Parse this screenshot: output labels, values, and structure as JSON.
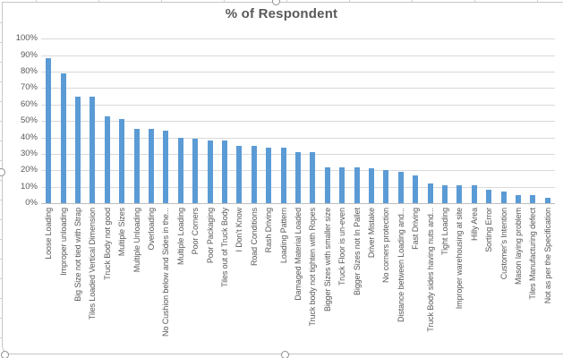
{
  "chart": {
    "title": "% of Respondent",
    "colors": {
      "bar": "#5b9bd5",
      "text": "#595959",
      "gridline": "#d9d9d9",
      "axis_line": "#bfbfbf",
      "frame": "#c6c6c6"
    },
    "y_axis_labels": [
      "0%",
      "10%",
      "20%",
      "30%",
      "40%",
      "50%",
      "60%",
      "70%",
      "80%",
      "90%",
      "100%"
    ]
  },
  "chart_data": {
    "type": "bar",
    "title": "% of Respondent",
    "xlabel": "",
    "ylabel": "",
    "ylim": [
      0,
      100
    ],
    "ytick_step": 10,
    "ytick_format": "percent",
    "grid": true,
    "legend": false,
    "categories": [
      "Loose Loading",
      "Improper unloading",
      "Big Size not tied with Strap",
      "Tiles Loaded Vertical Dimension",
      "Truck Body not good",
      "Multiple Sizes",
      "Multiple Unloading",
      "Overloading",
      "No Cushion below and Sides in the...",
      "Multiple Loading",
      "Poor Corners",
      "Poor Packaging",
      "Tiles out of Truck Body",
      "I Don't Know",
      "Road Conditions",
      "Rash Driving",
      "Loading Pattern",
      "Damaged Material Loaded",
      "Truck body not tighten with Ropes",
      "Bigger Sizes with smaller size",
      "Truck Floor is un-even",
      "Bigger Sizes not In Pallet",
      "Driver Mistake",
      "No corners protection",
      "Distance between Loading and...",
      "Fast Driving",
      "Truck Body sides having nuts and...",
      "Tight Loading",
      "Improper warehousing at site",
      "Hilly Area",
      "Sorting Error",
      "Customer's Intention",
      "Mason laying problem",
      "Tiles Manufacturing defect",
      "Not as per the Specification"
    ],
    "values": [
      88,
      79,
      65,
      65,
      53,
      51,
      45,
      45,
      44,
      40,
      39,
      38,
      38,
      35,
      35,
      34,
      34,
      31,
      31,
      22,
      22,
      22,
      21,
      20,
      19,
      17,
      12,
      11,
      11,
      11,
      8,
      7,
      5,
      5,
      3
    ]
  }
}
